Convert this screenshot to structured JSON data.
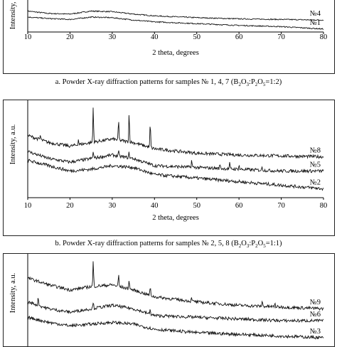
{
  "charts": [
    {
      "id": "a",
      "caption_prefix": "a. Powder X-ray diffraction patterns for samples № 1, 4, 7 (B",
      "caption_formula": [
        "2",
        "O",
        "3",
        ":P",
        "2",
        "O",
        "5",
        "=1:2)"
      ],
      "ylabel": "Intensity, a.u.",
      "xlabel": "2 theta, degrees",
      "xticks": [
        10,
        20,
        30,
        40,
        50,
        60,
        70,
        80
      ],
      "series_labels": [
        "№4",
        "№1"
      ]
    },
    {
      "id": "b",
      "caption_prefix": "b. Powder X-ray diffraction patterns for samples № 2, 5, 8 (B",
      "caption_formula": [
        "2",
        "O",
        "3",
        ":P",
        "2",
        "O",
        "5",
        "=1:1)"
      ],
      "ylabel": "Intensity, a.u.",
      "xlabel": "2 theta, degrees",
      "xticks": [
        10,
        20,
        30,
        40,
        50,
        60,
        70,
        80
      ],
      "series_labels": [
        "№8",
        "№5",
        "№2"
      ]
    },
    {
      "id": "c",
      "ylabel": "Intensity, a.u.",
      "series_labels": [
        "№9",
        "№6",
        "№3"
      ]
    }
  ],
  "chart_data": [
    {
      "type": "line",
      "xlabel": "2 theta, degrees",
      "ylabel": "Intensity, a.u.",
      "xlim": [
        10,
        80
      ],
      "series": [
        {
          "name": "№4",
          "x": [
            10,
            15,
            20,
            25,
            30,
            35,
            40,
            50,
            60,
            70,
            80
          ],
          "y": [
            0.7,
            0.62,
            0.6,
            0.7,
            0.68,
            0.6,
            0.54,
            0.48,
            0.44,
            0.42,
            0.4
          ]
        },
        {
          "name": "№1",
          "x": [
            10,
            15,
            20,
            25,
            30,
            35,
            40,
            50,
            60,
            70,
            80
          ],
          "y": [
            0.5,
            0.45,
            0.42,
            0.5,
            0.48,
            0.4,
            0.34,
            0.28,
            0.22,
            0.18,
            0.1
          ]
        }
      ]
    },
    {
      "type": "line",
      "xlabel": "2 theta, degrees",
      "ylabel": "Intensity, a.u.",
      "xlim": [
        10,
        80
      ],
      "series": [
        {
          "name": "№8",
          "x": [
            10,
            15,
            20,
            25,
            30,
            35,
            40,
            50,
            60,
            70,
            80
          ],
          "y": [
            0.7,
            0.62,
            0.58,
            0.62,
            0.66,
            0.62,
            0.55,
            0.5,
            0.48,
            0.47,
            0.46
          ],
          "peaks": [
            [
              25.5,
              0.4
            ],
            [
              31.5,
              0.22
            ],
            [
              34.0,
              0.33
            ],
            [
              39.0,
              0.28
            ],
            [
              22.0,
              0.06
            ],
            [
              13.0,
              0.05
            ]
          ]
        },
        {
          "name": "№5",
          "x": [
            10,
            15,
            20,
            25,
            30,
            35,
            40,
            50,
            60,
            70,
            80
          ],
          "y": [
            0.52,
            0.44,
            0.4,
            0.44,
            0.48,
            0.44,
            0.36,
            0.34,
            0.32,
            0.3,
            0.3
          ],
          "peaks": [
            [
              25.5,
              0.08
            ],
            [
              31.5,
              0.05
            ],
            [
              34.0,
              0.06
            ],
            [
              48.8,
              0.08
            ],
            [
              55.5,
              0.05
            ],
            [
              57.8,
              0.06
            ],
            [
              60.0,
              0.05
            ],
            [
              65.5,
              0.04
            ]
          ]
        },
        {
          "name": "№2",
          "x": [
            10,
            15,
            20,
            25,
            30,
            35,
            40,
            50,
            60,
            70,
            80
          ],
          "y": [
            0.42,
            0.36,
            0.3,
            0.32,
            0.36,
            0.34,
            0.26,
            0.22,
            0.18,
            0.14,
            0.1
          ]
        }
      ]
    },
    {
      "type": "line",
      "ylabel": "Intensity, a.u.",
      "xlim": [
        10,
        80
      ],
      "series": [
        {
          "name": "№9",
          "x": [
            10,
            15,
            20,
            25,
            30,
            35,
            40,
            50,
            60,
            70,
            80
          ],
          "y": [
            0.8,
            0.72,
            0.66,
            0.7,
            0.72,
            0.66,
            0.58,
            0.52,
            0.48,
            0.46,
            0.44
          ],
          "peaks": [
            [
              25.5,
              0.3
            ],
            [
              31.5,
              0.14
            ],
            [
              34.0,
              0.12
            ],
            [
              39.0,
              0.1
            ],
            [
              48.8,
              0.06
            ],
            [
              65.5,
              0.06
            ],
            [
              68.5,
              0.04
            ]
          ]
        },
        {
          "name": "№6",
          "x": [
            10,
            15,
            20,
            25,
            30,
            35,
            40,
            50,
            60,
            70,
            80
          ],
          "y": [
            0.52,
            0.44,
            0.4,
            0.44,
            0.48,
            0.44,
            0.36,
            0.34,
            0.32,
            0.3,
            0.3
          ],
          "peaks": [
            [
              12.5,
              0.1
            ],
            [
              25.5,
              0.08
            ],
            [
              39.0,
              0.06
            ]
          ]
        },
        {
          "name": "№3",
          "x": [
            10,
            15,
            20,
            25,
            30,
            35,
            40,
            50,
            60,
            70,
            80
          ],
          "y": [
            0.34,
            0.28,
            0.24,
            0.26,
            0.28,
            0.26,
            0.2,
            0.16,
            0.14,
            0.12,
            0.1
          ]
        }
      ]
    }
  ]
}
